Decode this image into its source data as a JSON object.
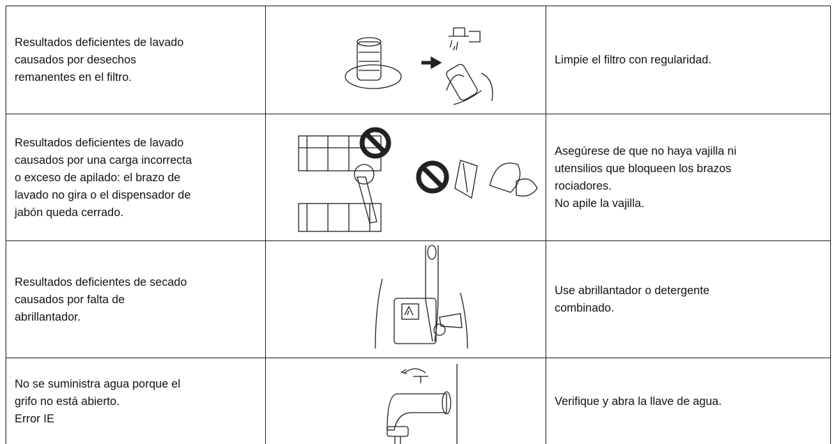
{
  "table": {
    "rows": [
      {
        "problem": [
          "Resultados deficientes de lavado",
          "causados por desechos",
          "remanentes en el filtro."
        ],
        "solution": [
          "Limpie el filtro con regularidad."
        ]
      },
      {
        "problem": [
          "Resultados deficientes de lavado",
          "causados por una carga incorrecta",
          "o exceso de apilado: el brazo de",
          "lavado no gira o el dispensador de",
          "jabón queda cerrado."
        ],
        "solution": [
          "Asegúrese de que no haya vajilla ni",
          "utensilios que bloqueen los brazos",
          "rociadores.",
          "No apile la vajilla."
        ]
      },
      {
        "problem": [
          "Resultados deficientes de secado",
          "causados por falta de",
          "abrillantador."
        ],
        "solution": [
          "Use abrillantador o detergente",
          "combinado."
        ]
      },
      {
        "problem": [
          "No se suministra agua porque el",
          "grifo no está abierto.",
          "Error IE"
        ],
        "solution": [
          "Verifique y abra la llave de agua."
        ]
      }
    ]
  }
}
